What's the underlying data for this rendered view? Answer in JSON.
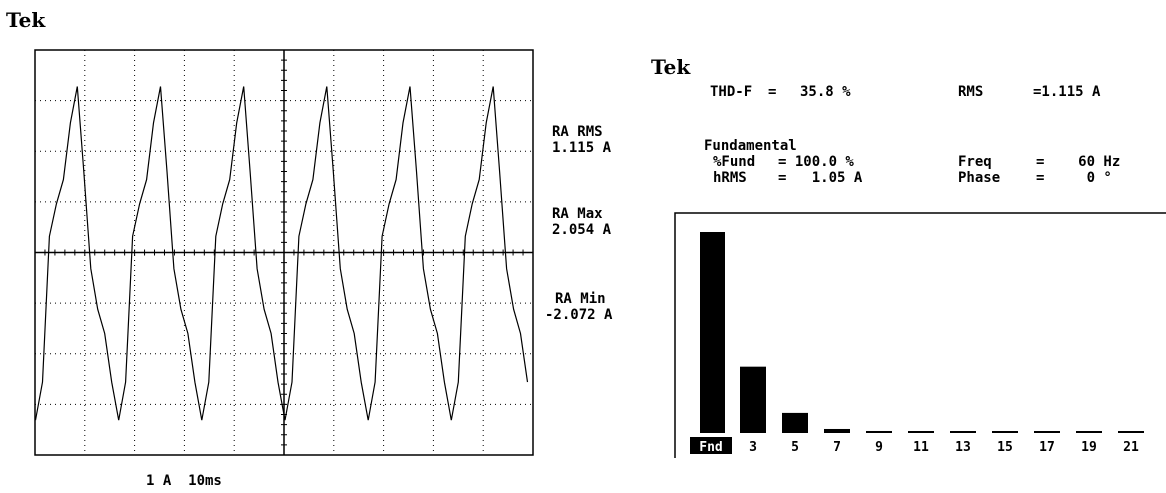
{
  "scope": {
    "brand": "Tek",
    "readouts": {
      "rms_label": "RA RMS",
      "rms_value": "1.115 A",
      "max_label": "RA Max",
      "max_value": "2.054 A",
      "min_label": "RA Min",
      "min_value": "-2.072 A"
    },
    "scale": "1 A  10ms"
  },
  "analyzer": {
    "brand": "Tek",
    "thd_label": "THD-F",
    "thd_value": "35.8 %",
    "rms_label": "RMS",
    "rms_value": "=1.115 A",
    "fundamental_heading": "Fundamental",
    "fund_pct_label": "%Fund",
    "fund_pct_value": "= 100.0 %",
    "hrms_label": "hRMS",
    "hrms_value": "=   1.05 A",
    "freq_label": "Freq",
    "freq_value": "=    60 Hz",
    "phase_label": "Phase",
    "phase_value": "=     0 °"
  },
  "chart_data": [
    {
      "type": "line",
      "ylabel": "",
      "xlabel": "",
      "ylim": [
        -2.5,
        2.5
      ],
      "xlim": [
        0,
        100
      ],
      "grid": true,
      "x": [
        0,
        1.4,
        2.8,
        4.2,
        5.6,
        7.0,
        8.3,
        9.7,
        11.1,
        12.5,
        13.9,
        15.3,
        16.7
      ],
      "y": [
        -1.6,
        0.2,
        0.6,
        0.9,
        1.6,
        2.05,
        1.0,
        -0.2,
        -0.7,
        -1.0,
        -1.6,
        -2.07,
        -1.6
      ]
    },
    {
      "type": "bar",
      "categories": [
        "Fnd",
        "3",
        "5",
        "7",
        "9",
        "11",
        "13",
        "15",
        "17",
        "19",
        "21"
      ],
      "values": [
        100,
        33,
        10,
        2,
        1,
        0.5,
        0.3,
        0.3,
        0.3,
        0.3,
        0.3
      ],
      "ylim": [
        0,
        110
      ]
    }
  ]
}
